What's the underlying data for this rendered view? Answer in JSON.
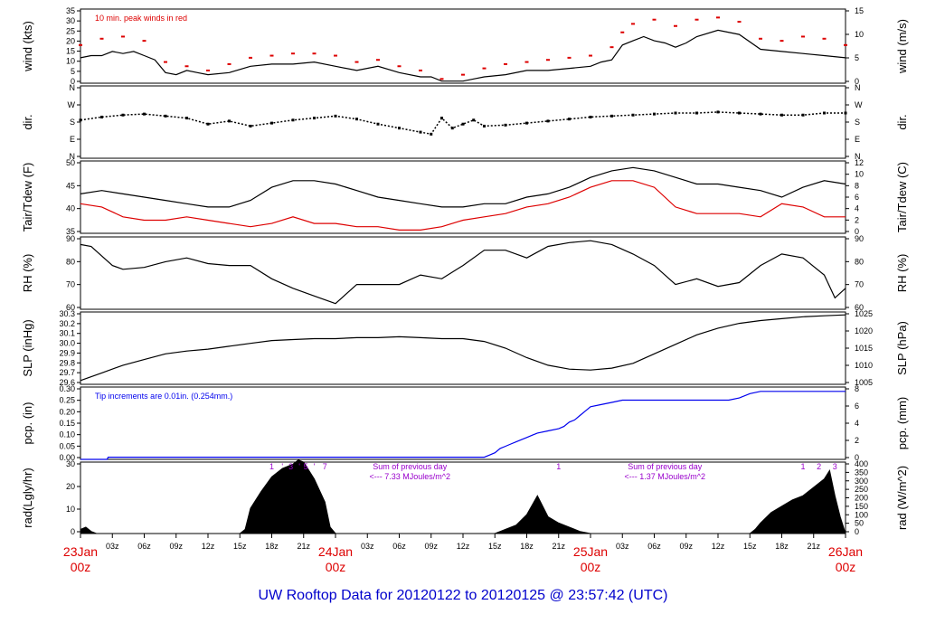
{
  "footer_title": "UW Rooftop Data for 20120122  to  20120125 @ 23:57:42  (UTC)",
  "colors": {
    "primary": "#000000",
    "red": "#dd0000",
    "blue": "#0000ee",
    "purple": "#9900cc",
    "footer": "#0000cc"
  },
  "time_axis": {
    "hours": [
      "03z",
      "06z",
      "09z",
      "12z",
      "15z",
      "18z",
      "21z",
      "03z",
      "06z",
      "09z",
      "12z",
      "15z",
      "18z",
      "21z",
      "03z",
      "06z",
      "09z",
      "12z",
      "15z",
      "18z",
      "21z"
    ],
    "days": [
      {
        "date": "23Jan",
        "time": "00z"
      },
      {
        "date": "24Jan",
        "time": "00z"
      },
      {
        "date": "25Jan",
        "time": "00z"
      },
      {
        "date": "26Jan",
        "time": "00z"
      }
    ],
    "range_hours": [
      0,
      72
    ]
  },
  "chart_data": [
    {
      "type": "line",
      "ylabel": "wind (kts)",
      "ylabel_right": "wind (m/s)",
      "left_ticks": [
        "0",
        "5",
        "10",
        "15",
        "20",
        "25",
        "30",
        "35"
      ],
      "right_ticks": [
        "0",
        "5",
        "10",
        "15"
      ],
      "ylim": [
        0,
        35
      ],
      "annotation": "10 min. peak winds in red",
      "series": [
        {
          "color": "#000000",
          "x": [
            0,
            1,
            2,
            3,
            4,
            5,
            6,
            7,
            8,
            9,
            10,
            11,
            12,
            14,
            16,
            18,
            20,
            22,
            24,
            26,
            28,
            30,
            32,
            33,
            34,
            35,
            36,
            37,
            38,
            40,
            42,
            44,
            46,
            48,
            49,
            50,
            51,
            52,
            53,
            54,
            55,
            56,
            57,
            58,
            60,
            62,
            64,
            66,
            68,
            70,
            72
          ],
          "y": [
            12,
            13,
            13,
            15,
            14,
            15,
            13,
            11,
            5,
            4,
            6,
            5,
            4,
            5,
            8,
            9,
            9,
            10,
            8,
            6,
            8,
            5,
            3,
            3,
            1,
            1,
            1,
            2,
            3,
            4,
            6,
            6,
            7,
            8,
            10,
            11,
            18,
            20,
            22,
            20,
            19,
            17,
            19,
            22,
            25,
            23,
            16,
            15,
            14,
            13,
            12
          ]
        },
        {
          "name": "peak",
          "color": "#dd0000",
          "x": [
            0,
            2,
            4,
            6,
            8,
            10,
            12,
            14,
            16,
            18,
            20,
            22,
            24,
            26,
            28,
            30,
            32,
            34,
            36,
            38,
            40,
            42,
            44,
            46,
            48,
            50,
            51,
            52,
            54,
            56,
            58,
            60,
            62,
            64,
            66,
            68,
            70,
            72
          ],
          "y": [
            18,
            21,
            22,
            20,
            10,
            8,
            6,
            9,
            12,
            13,
            14,
            14,
            13,
            10,
            11,
            8,
            6,
            2,
            4,
            7,
            9,
            10,
            11,
            12,
            13,
            17,
            24,
            28,
            30,
            27,
            30,
            31,
            29,
            21,
            20,
            22,
            21,
            18
          ]
        }
      ]
    },
    {
      "type": "scatter",
      "ylabel": "dir.",
      "ylabel_right": "dir.",
      "left_ticks": [
        "N",
        "E",
        "S",
        "W",
        "N"
      ],
      "right_ticks": [
        "N",
        "E",
        "S",
        "W",
        "N"
      ],
      "ylim": [
        0,
        360
      ],
      "series": [
        {
          "color": "#000000",
          "x": [
            0,
            2,
            4,
            6,
            8,
            10,
            12,
            14,
            16,
            18,
            20,
            22,
            24,
            26,
            28,
            30,
            32,
            33,
            34,
            35,
            36,
            37,
            38,
            40,
            42,
            44,
            46,
            48,
            50,
            52,
            54,
            56,
            58,
            60,
            62,
            64,
            66,
            68,
            70,
            72
          ],
          "y": [
            190,
            205,
            215,
            220,
            210,
            200,
            170,
            185,
            160,
            175,
            190,
            200,
            210,
            195,
            170,
            150,
            130,
            120,
            200,
            150,
            170,
            190,
            160,
            165,
            175,
            185,
            195,
            205,
            210,
            215,
            220,
            225,
            225,
            230,
            225,
            220,
            215,
            215,
            225,
            225
          ]
        }
      ]
    },
    {
      "type": "line",
      "ylabel": "Tair/Tdew (F)",
      "ylabel_right": "Tair/Tdew (C)",
      "left_ticks": [
        "35",
        "40",
        "45",
        "50"
      ],
      "right_ticks": [
        "0",
        "2",
        "4",
        "6",
        "8",
        "10",
        "12"
      ],
      "ylim": [
        32,
        54
      ],
      "series": [
        {
          "name": "Tair",
          "color": "#000000",
          "x": [
            0,
            2,
            4,
            6,
            8,
            10,
            12,
            14,
            16,
            18,
            20,
            22,
            24,
            26,
            28,
            30,
            32,
            34,
            36,
            38,
            40,
            42,
            44,
            46,
            48,
            50,
            52,
            54,
            56,
            58,
            60,
            62,
            64,
            66,
            68,
            70,
            72
          ],
          "y": [
            44,
            45,
            44,
            43,
            42,
            41,
            40,
            40,
            42,
            46,
            48,
            48,
            47,
            45,
            43,
            42,
            41,
            40,
            40,
            41,
            41,
            43,
            44,
            46,
            49,
            51,
            52,
            51,
            49,
            47,
            47,
            46,
            45,
            43,
            46,
            48,
            47
          ]
        },
        {
          "name": "Tdew",
          "color": "#dd0000",
          "x": [
            0,
            2,
            4,
            6,
            8,
            10,
            12,
            14,
            16,
            18,
            20,
            22,
            24,
            26,
            28,
            30,
            32,
            34,
            36,
            38,
            40,
            42,
            44,
            46,
            48,
            50,
            52,
            54,
            56,
            58,
            60,
            62,
            64,
            66,
            68,
            70,
            72
          ],
          "y": [
            41,
            40,
            37,
            36,
            36,
            37,
            36,
            35,
            34,
            35,
            37,
            35,
            35,
            34,
            34,
            33,
            33,
            34,
            36,
            37,
            38,
            40,
            41,
            43,
            46,
            48,
            48,
            46,
            40,
            38,
            38,
            38,
            37,
            41,
            40,
            37,
            37
          ]
        }
      ]
    },
    {
      "type": "line",
      "ylabel": "RH (%)",
      "ylabel_right": "RH (%)",
      "left_ticks": [
        "60",
        "70",
        "80",
        "90"
      ],
      "right_ticks": [
        "60",
        "70",
        "80",
        "90"
      ],
      "ylim": [
        57,
        95
      ],
      "series": [
        {
          "color": "#000000",
          "x": [
            0,
            1,
            2,
            3,
            4,
            6,
            8,
            10,
            12,
            14,
            16,
            18,
            20,
            22,
            24,
            26,
            28,
            30,
            32,
            34,
            36,
            38,
            40,
            42,
            44,
            46,
            48,
            50,
            52,
            54,
            56,
            58,
            60,
            62,
            64,
            66,
            68,
            70,
            71,
            72
          ],
          "y": [
            91,
            90,
            85,
            80,
            78,
            79,
            82,
            84,
            81,
            80,
            80,
            73,
            68,
            64,
            60,
            70,
            70,
            70,
            75,
            73,
            80,
            88,
            88,
            84,
            90,
            92,
            93,
            91,
            86,
            80,
            70,
            73,
            69,
            71,
            80,
            86,
            84,
            75,
            63,
            68
          ]
        }
      ]
    },
    {
      "type": "line",
      "ylabel": "SLP (inHg)",
      "ylabel_right": "SLP (hPa)",
      "left_ticks": [
        "29.6",
        "29.7",
        "29.8",
        "29.9",
        "30.0",
        "30.1",
        "30.2",
        "30.3"
      ],
      "right_ticks": [
        "1005",
        "1010",
        "1015",
        "1020",
        "1025"
      ],
      "ylim": [
        29.58,
        30.34
      ],
      "series": [
        {
          "color": "#000000",
          "x": [
            0,
            2,
            4,
            6,
            8,
            10,
            12,
            14,
            16,
            18,
            20,
            22,
            24,
            26,
            28,
            30,
            32,
            34,
            36,
            38,
            40,
            42,
            44,
            46,
            48,
            50,
            52,
            54,
            56,
            58,
            60,
            62,
            64,
            66,
            68,
            70,
            72
          ],
          "y": [
            29.62,
            29.7,
            29.78,
            29.84,
            29.9,
            29.93,
            29.95,
            29.98,
            30.01,
            30.04,
            30.05,
            30.06,
            30.06,
            30.07,
            30.07,
            30.08,
            30.07,
            30.06,
            30.06,
            30.03,
            29.96,
            29.86,
            29.78,
            29.74,
            29.73,
            29.75,
            29.8,
            29.9,
            30.0,
            30.1,
            30.17,
            30.22,
            30.25,
            30.27,
            30.29,
            30.3,
            30.31
          ]
        }
      ]
    },
    {
      "type": "line",
      "ylabel": "pcp. (in)",
      "ylabel_right": "pcp. (mm)",
      "left_ticks": [
        "0.00",
        "0.05",
        "0.10",
        "0.15",
        "0.20",
        "0.25",
        "0.30"
      ],
      "right_ticks": [
        "0",
        "2",
        "4",
        "6",
        "8"
      ],
      "ylim": [
        0,
        0.33
      ],
      "annotation": "Tip increments are 0.01in. (0.254mm.)",
      "series": [
        {
          "color": "#0000ee",
          "x": [
            0,
            2.5,
            2.6,
            38,
            38.5,
            39,
            39.5,
            40,
            40.5,
            41,
            41.5,
            42,
            42.5,
            43,
            44,
            45,
            45.5,
            46,
            46.5,
            47,
            47.5,
            48,
            49,
            50,
            51,
            52,
            60,
            61,
            62,
            63,
            64,
            65,
            66,
            67,
            68,
            69,
            70,
            71,
            72
          ],
          "y": [
            0,
            0,
            0.01,
            0.01,
            0.02,
            0.03,
            0.05,
            0.06,
            0.07,
            0.08,
            0.09,
            0.1,
            0.11,
            0.12,
            0.13,
            0.14,
            0.15,
            0.17,
            0.18,
            0.2,
            0.22,
            0.24,
            0.25,
            0.26,
            0.27,
            0.27,
            0.27,
            0.27,
            0.28,
            0.3,
            0.31,
            0.31,
            0.31,
            0.31,
            0.31,
            0.31,
            0.31,
            0.31,
            0.31
          ]
        }
      ]
    },
    {
      "type": "area",
      "ylabel": "rad(Lgly/hr)",
      "ylabel_right": "rad (W/m^2)",
      "left_ticks": [
        "0",
        "10",
        "20",
        "30"
      ],
      "right_ticks": [
        "0",
        "50",
        "100",
        "150",
        "200",
        "250",
        "300",
        "350",
        "400"
      ],
      "ylim": [
        0,
        34
      ],
      "series": [
        {
          "color": "#000000",
          "x": [
            0,
            0.5,
            1,
            1.5,
            2,
            15,
            15.5,
            16,
            17,
            18,
            19,
            20,
            20.5,
            21,
            22,
            23,
            23.5,
            24,
            39,
            39.5,
            40,
            41,
            42,
            43,
            44,
            45,
            46,
            47,
            48,
            63,
            63.5,
            64,
            65,
            66,
            67,
            68,
            69,
            70,
            70.5,
            71,
            71.5,
            72
          ],
          "y": [
            2,
            3,
            1,
            0,
            0,
            0,
            2,
            12,
            20,
            27,
            31,
            33,
            35,
            34,
            26,
            15,
            3,
            0,
            0,
            1,
            2,
            4,
            9,
            18,
            8,
            5,
            3,
            1,
            0,
            0,
            2,
            5,
            10,
            13,
            16,
            18,
            22,
            26,
            30,
            18,
            8,
            0
          ]
        }
      ],
      "annotations": [
        {
          "text": "1",
          "x": 18,
          "color": "#9900cc"
        },
        {
          "text": "'",
          "x": 19,
          "color": "#9900cc"
        },
        {
          "text": "3",
          "x": 19.8,
          "color": "#9900cc"
        },
        {
          "text": "'",
          "x": 20.6,
          "color": "#9900cc"
        },
        {
          "text": "5",
          "x": 21.2,
          "color": "#9900cc"
        },
        {
          "text": "'",
          "x": 22,
          "color": "#9900cc"
        },
        {
          "text": "7",
          "x": 23,
          "color": "#9900cc"
        },
        {
          "text": "1",
          "x": 45,
          "color": "#9900cc"
        },
        {
          "text": "1",
          "x": 68,
          "color": "#9900cc"
        },
        {
          "text": "2",
          "x": 69.5,
          "color": "#9900cc"
        },
        {
          "text": "3",
          "x": 71,
          "color": "#9900cc"
        }
      ],
      "sum_notes": [
        {
          "line1": "Sum of previous day",
          "line2": "<--- 7.33 MJoules/m^2",
          "x": 31
        },
        {
          "line1": "Sum of previous day",
          "line2": "<--- 1.37 MJoules/m^2",
          "x": 55
        }
      ]
    }
  ]
}
